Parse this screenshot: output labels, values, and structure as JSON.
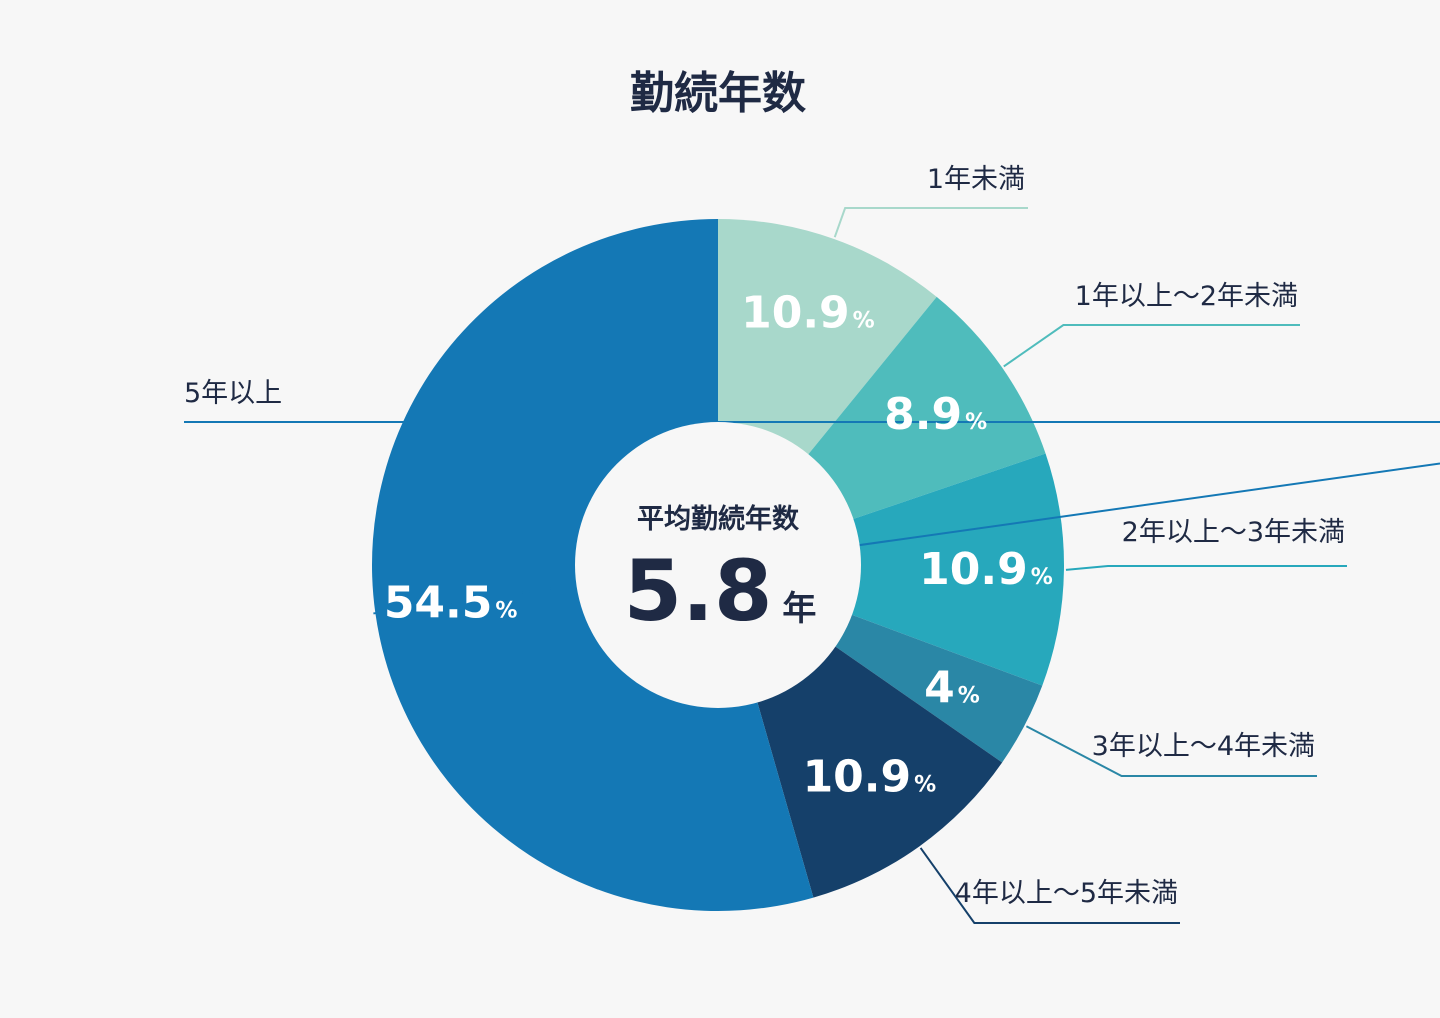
{
  "chart_data": {
    "type": "pie",
    "title": "勤続年数",
    "center": {
      "label": "平均勤続年数",
      "value": "5.8",
      "unit": "年"
    },
    "percent_suffix": "%",
    "categories": [
      "1年未満",
      "1年以上～2年未満",
      "2年以上～3年未満",
      "3年以上～4年未満",
      "4年以上～5年未満",
      "5年以上"
    ],
    "values": [
      10.9,
      8.9,
      10.9,
      4,
      10.9,
      54.5
    ],
    "value_labels": [
      "10.9",
      "8.9",
      "10.9",
      "4",
      "10.9",
      "54.5"
    ],
    "colors": [
      "#a8d8cb",
      "#4fbcbc",
      "#27a8bc",
      "#2a87a6",
      "#15406a",
      "#1478b5"
    ],
    "center_color": "#f7f7f7"
  }
}
